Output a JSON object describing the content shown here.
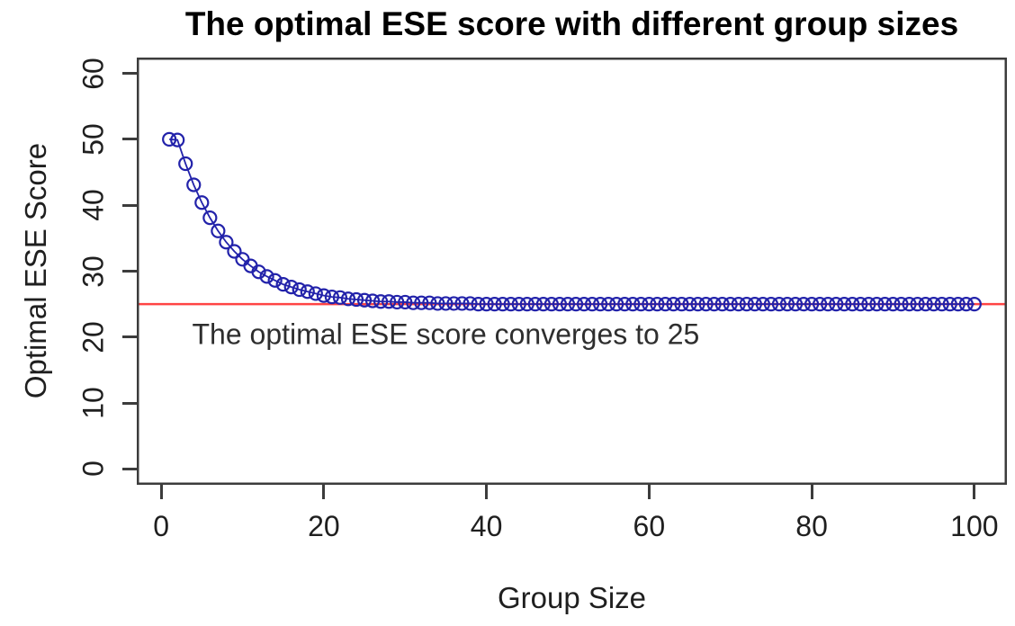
{
  "chart_data": {
    "type": "line",
    "title": "The optimal ESE score with different group sizes",
    "xlabel": "Group Size",
    "ylabel": "Optimal ESE Score",
    "xlim": [
      -3,
      104
    ],
    "ylim": [
      -2.4,
      62.4
    ],
    "x_ticks": [
      0,
      20,
      40,
      60,
      80,
      100
    ],
    "y_ticks": [
      0,
      10,
      20,
      30,
      40,
      50,
      60
    ],
    "grid": false,
    "legend": "none",
    "marker": "open-circle",
    "series_name": "Optimal ESE score",
    "series_color": "#2222aa",
    "x_start": 1,
    "x_step": 1,
    "y": [
      50,
      49.9,
      46.3,
      43.1,
      40.4,
      38.1,
      36.1,
      34.4,
      33,
      31.8,
      30.8,
      29.9,
      29.2,
      28.6,
      28,
      27.6,
      27.2,
      26.9,
      26.6,
      26.3,
      26.1,
      26,
      25.8,
      25.7,
      25.6,
      25.5,
      25.4,
      25.4,
      25.3,
      25.3,
      25.2,
      25.2,
      25.2,
      25.1,
      25.1,
      25.1,
      25.1,
      25.1,
      25,
      25,
      25,
      25,
      25,
      25,
      25,
      25,
      25,
      25,
      25,
      25,
      25,
      25,
      25,
      25,
      25,
      25,
      25,
      25,
      25,
      25,
      25,
      25,
      25,
      25,
      25,
      25,
      25,
      25,
      25,
      25,
      25,
      25,
      25,
      25,
      25,
      25,
      25,
      25,
      25,
      25,
      25,
      25,
      25,
      25,
      25,
      25,
      25,
      25,
      25,
      25,
      25,
      25,
      25,
      25,
      25,
      25,
      25,
      25,
      25,
      25
    ],
    "hline": {
      "y": 25,
      "color": "#ff4444"
    },
    "annotation": {
      "text": "The optimal ESE score converges to 25",
      "x": 35,
      "y": 20.4
    }
  }
}
